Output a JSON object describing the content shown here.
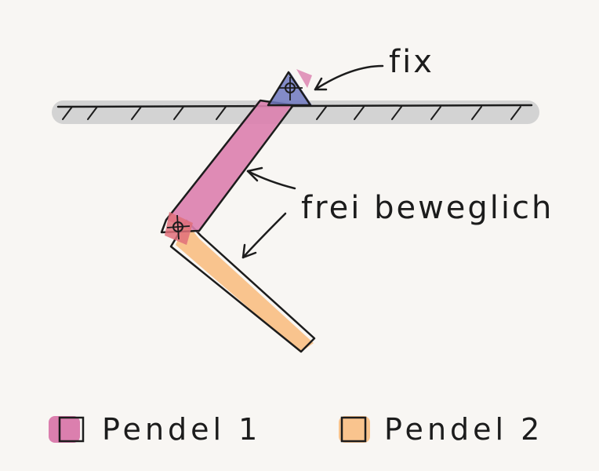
{
  "labels": {
    "fix": "fix",
    "free": "frei beweglich"
  },
  "legend": [
    {
      "label": "Pendel 1",
      "color": "#db7fae"
    },
    {
      "label": "Pendel 2",
      "color": "#f9c48e"
    }
  ],
  "colors": {
    "ground": "#d3d3d3",
    "pivot": "#6e78c0",
    "joint": "#e0707a",
    "ink": "#1c1c1c"
  }
}
